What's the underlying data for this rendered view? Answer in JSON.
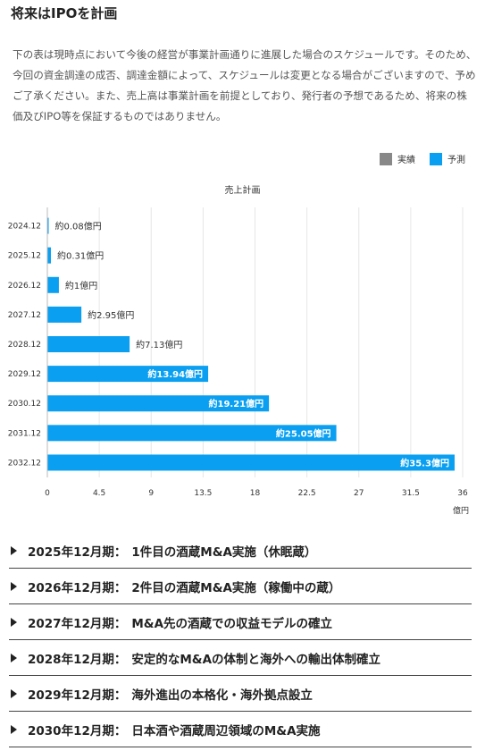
{
  "page": {
    "title": "将来はIPOを計画",
    "description": "下の表は現時点において今後の経営が事業計画通りに進展した場合のスケジュールです。そのため、今回の資金調達の成否、調達金額によって、スケジュールは変更となる場合がございますので、予めご了承ください。また、売上高は事業計画を前提としており、発行者の予想であるため、将来の株価及びIPO等を保証するものではありません。"
  },
  "legend": {
    "actual": {
      "label": "実績",
      "color": "#888888"
    },
    "forecast": {
      "label": "予測",
      "color": "#0a9ff0"
    }
  },
  "chart_data": {
    "type": "bar",
    "orientation": "horizontal",
    "title": "売上計画",
    "xlabel": "",
    "unit": "億円",
    "xlim": [
      0,
      36
    ],
    "xticks": [
      "0",
      "4.5",
      "9",
      "13.5",
      "18",
      "22.5",
      "27",
      "31.5",
      "36"
    ],
    "categories": [
      "2024.12",
      "2025.12",
      "2026.12",
      "2027.12",
      "2028.12",
      "2029.12",
      "2030.12",
      "2031.12",
      "2032.12"
    ],
    "series": [
      {
        "name": "予測",
        "values": [
          0.08,
          0.31,
          1,
          2.95,
          7.13,
          13.94,
          19.21,
          25.05,
          35.3
        ],
        "labels": [
          "約0.08億円",
          "約0.31億円",
          "約1億円",
          "約2.95億円",
          "約7.13億円",
          "約13.94億円",
          "約19.21億円",
          "約25.05億円",
          "約35.3億円"
        ]
      }
    ],
    "grid": true,
    "legend_position": "top-right"
  },
  "periods": [
    {
      "label": "2025年12月期：",
      "text": "1件目の酒蔵M&A実施（休眠蔵）"
    },
    {
      "label": "2026年12月期：",
      "text": "2件目の酒蔵M&A実施（稼働中の蔵）"
    },
    {
      "label": "2027年12月期：",
      "text": "M&A先の酒蔵での収益モデルの確立"
    },
    {
      "label": "2028年12月期：",
      "text": "安定的なM&Aの体制と海外への輸出体制確立"
    },
    {
      "label": "2029年12月期：",
      "text": "海外進出の本格化・海外拠点設立"
    },
    {
      "label": "2030年12月期：",
      "text": "日本酒や酒蔵周辺領域のM&A実施"
    }
  ]
}
